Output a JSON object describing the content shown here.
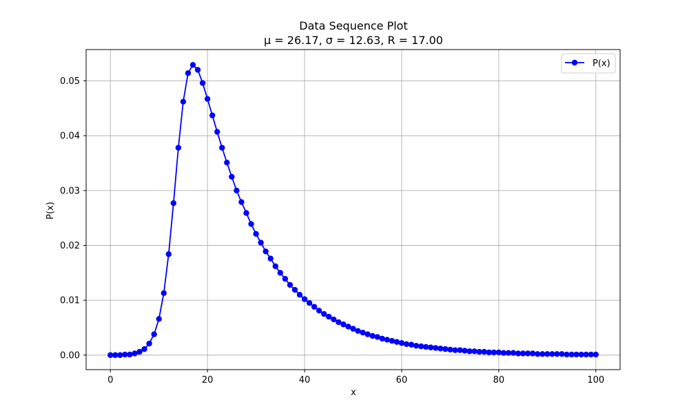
{
  "chart_data": {
    "type": "line",
    "title": "Data Sequence Plot",
    "subtitle": "μ = 26.17, σ = 12.63, R = 17.00",
    "xlabel": "x",
    "ylabel": "P(x)",
    "xlim": [
      -5,
      105
    ],
    "ylim": [
      -0.00265,
      0.0557
    ],
    "xticks": [
      0,
      20,
      40,
      60,
      80,
      100
    ],
    "xtick_labels": [
      "0",
      "20",
      "40",
      "60",
      "80",
      "100"
    ],
    "yticks": [
      0.0,
      0.01,
      0.02,
      0.03,
      0.04,
      0.05
    ],
    "ytick_labels": [
      "0.00",
      "0.01",
      "0.02",
      "0.03",
      "0.04",
      "0.05"
    ],
    "grid": true,
    "legend": {
      "position": "top-right"
    },
    "series": [
      {
        "name": "P(x)",
        "color": "#0000ff",
        "marker": "circle",
        "x": [
          0,
          1,
          2,
          3,
          4,
          5,
          6,
          7,
          8,
          9,
          10,
          11,
          12,
          13,
          14,
          15,
          16,
          17,
          18,
          19,
          20,
          21,
          22,
          23,
          24,
          25,
          26,
          27,
          28,
          29,
          30,
          31,
          32,
          33,
          34,
          35,
          36,
          37,
          38,
          39,
          40,
          41,
          42,
          43,
          44,
          45,
          46,
          47,
          48,
          49,
          50,
          51,
          52,
          53,
          54,
          55,
          56,
          57,
          58,
          59,
          60,
          61,
          62,
          63,
          64,
          65,
          66,
          67,
          68,
          69,
          70,
          71,
          72,
          73,
          74,
          75,
          76,
          77,
          78,
          79,
          80,
          81,
          82,
          83,
          84,
          85,
          86,
          87,
          88,
          89,
          90,
          91,
          92,
          93,
          94,
          95,
          96,
          97,
          98,
          99,
          100
        ],
        "values": [
          0.0,
          0.0,
          0.0,
          0.0001,
          0.0001,
          0.0003,
          0.0006,
          0.0011,
          0.0021,
          0.0038,
          0.0066,
          0.0113,
          0.0184,
          0.0277,
          0.0378,
          0.0462,
          0.0514,
          0.0529,
          0.052,
          0.0496,
          0.0467,
          0.0437,
          0.0407,
          0.0378,
          0.0351,
          0.0325,
          0.03,
          0.0279,
          0.0259,
          0.0239,
          0.0221,
          0.0205,
          0.0189,
          0.0176,
          0.0162,
          0.015,
          0.0139,
          0.0128,
          0.0119,
          0.011,
          0.0102,
          0.0095,
          0.0088,
          0.0081,
          0.0075,
          0.007,
          0.0065,
          0.006,
          0.0056,
          0.0052,
          0.0048,
          0.0044,
          0.0041,
          0.0038,
          0.0035,
          0.0033,
          0.003,
          0.0028,
          0.0026,
          0.0024,
          0.0022,
          0.002,
          0.0019,
          0.0017,
          0.0016,
          0.0015,
          0.0014,
          0.0013,
          0.0012,
          0.0011,
          0.001,
          0.0009,
          0.0009,
          0.0008,
          0.0007,
          0.0007,
          0.0006,
          0.0006,
          0.0005,
          0.0005,
          0.0005,
          0.0004,
          0.0004,
          0.0004,
          0.0003,
          0.0003,
          0.0003,
          0.0003,
          0.0002,
          0.0002,
          0.0002,
          0.0002,
          0.0002,
          0.0002,
          0.0001,
          0.0001,
          0.0001,
          0.0001,
          0.0001,
          0.0001,
          0.0001
        ]
      }
    ]
  }
}
